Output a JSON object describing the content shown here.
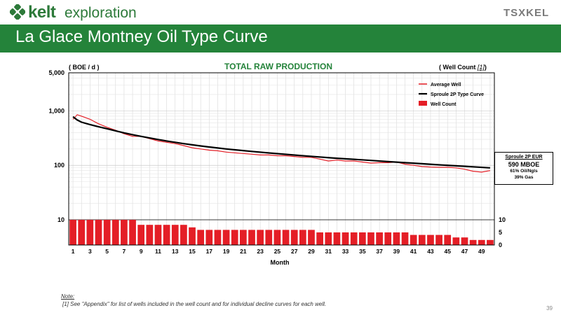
{
  "header": {
    "logo_word1": "kelt",
    "logo_word2": "exploration",
    "exchange_logo": "TSXKEL",
    "title": "La Glace Montney Oil Type Curve"
  },
  "colors": {
    "brand_green": "#24833a",
    "average_well": "#e41e26",
    "type_curve": "#000000",
    "well_count": "#e41e26"
  },
  "chart_data": {
    "type": "line",
    "title": "TOTAL RAW PRODUCTION",
    "ylabel_left": "( BOE / d )",
    "ylabel_right_prefix": "( Well Count ",
    "ylabel_right_ref": "[1]",
    "ylabel_right_suffix": ")",
    "xlabel": "Month",
    "yscale": "log",
    "ylim": [
      10,
      5000
    ],
    "yticks": [
      "5,000",
      "1,000",
      "100",
      "10"
    ],
    "y2lim": [
      0,
      10
    ],
    "y2ticks": [
      "10",
      "5",
      "0"
    ],
    "xlim": [
      1,
      50
    ],
    "xticks": [
      1,
      3,
      5,
      7,
      9,
      11,
      13,
      15,
      17,
      19,
      21,
      23,
      25,
      27,
      29,
      31,
      33,
      35,
      37,
      39,
      41,
      43,
      45,
      47,
      49
    ],
    "grid": true,
    "legend_placement": "top-right",
    "legend": [
      {
        "label": "Average Well",
        "kind": "line"
      },
      {
        "label": "Sproule 2P Type Curve",
        "kind": "line-thick"
      },
      {
        "label": "Well Count",
        "kind": "bar"
      }
    ],
    "series": [
      {
        "name": "Average Well",
        "x": [
          1,
          1.5,
          2,
          3,
          4,
          5,
          6,
          7,
          8,
          9,
          10,
          11,
          12,
          13,
          14,
          15,
          16,
          17,
          18,
          19,
          20,
          21,
          22,
          23,
          24,
          25,
          26,
          27,
          28,
          29,
          30,
          31,
          32,
          33,
          34,
          35,
          36,
          37,
          38,
          39,
          40,
          41,
          42,
          43,
          44,
          45,
          46,
          47,
          48,
          49,
          50
        ],
        "y": [
          700,
          850,
          800,
          700,
          580,
          500,
          440,
          380,
          340,
          340,
          310,
          280,
          265,
          250,
          230,
          210,
          200,
          190,
          185,
          175,
          170,
          165,
          160,
          155,
          155,
          150,
          150,
          145,
          140,
          140,
          130,
          120,
          125,
          120,
          120,
          115,
          110,
          112,
          112,
          115,
          105,
          100,
          95,
          93,
          92,
          92,
          90,
          85,
          78,
          75,
          80
        ]
      },
      {
        "name": "Sproule 2P Type Curve",
        "x": [
          1,
          1.5,
          2,
          3,
          4,
          5,
          6,
          7,
          8,
          9,
          10,
          11,
          12,
          13,
          14,
          15,
          16,
          17,
          18,
          19,
          20,
          22,
          24,
          26,
          28,
          30,
          32,
          34,
          36,
          38,
          40,
          42,
          44,
          46,
          48,
          50
        ],
        "y": [
          780,
          680,
          620,
          560,
          510,
          470,
          430,
          395,
          365,
          340,
          318,
          298,
          280,
          265,
          250,
          238,
          227,
          217,
          208,
          200,
          193,
          180,
          169,
          159,
          150,
          142,
          135,
          129,
          123,
          117,
          112,
          107,
          102,
          98,
          94,
          90
        ]
      },
      {
        "name": "Well Count",
        "type": "bar",
        "x": [
          1,
          2,
          3,
          4,
          5,
          6,
          7,
          8,
          9,
          10,
          11,
          12,
          13,
          14,
          15,
          16,
          17,
          18,
          19,
          20,
          21,
          22,
          23,
          24,
          25,
          26,
          27,
          28,
          29,
          30,
          31,
          32,
          33,
          34,
          35,
          36,
          37,
          38,
          39,
          40,
          41,
          42,
          43,
          44,
          45,
          46,
          47,
          48,
          49,
          50
        ],
        "y": [
          10,
          10,
          10,
          10,
          10,
          10,
          10,
          10,
          8,
          8,
          8,
          8,
          8,
          8,
          7,
          6,
          6,
          6,
          6,
          6,
          6,
          6,
          6,
          6,
          6,
          6,
          6,
          6,
          6,
          5,
          5,
          5,
          5,
          5,
          5,
          5,
          5,
          5,
          5,
          5,
          4,
          4,
          4,
          4,
          4,
          3,
          3,
          2,
          2,
          2
        ]
      }
    ]
  },
  "eur_box": {
    "title": "Sproule 2P EUR",
    "value": "590 MBOE",
    "line1": "61% Oil/Ngls",
    "line2": "39% Gas"
  },
  "note": {
    "label": "Note:",
    "text": "[1] See \"Appendix\" for list of wells included in the well count and for individual decline curves for each well."
  },
  "page_number": "39"
}
